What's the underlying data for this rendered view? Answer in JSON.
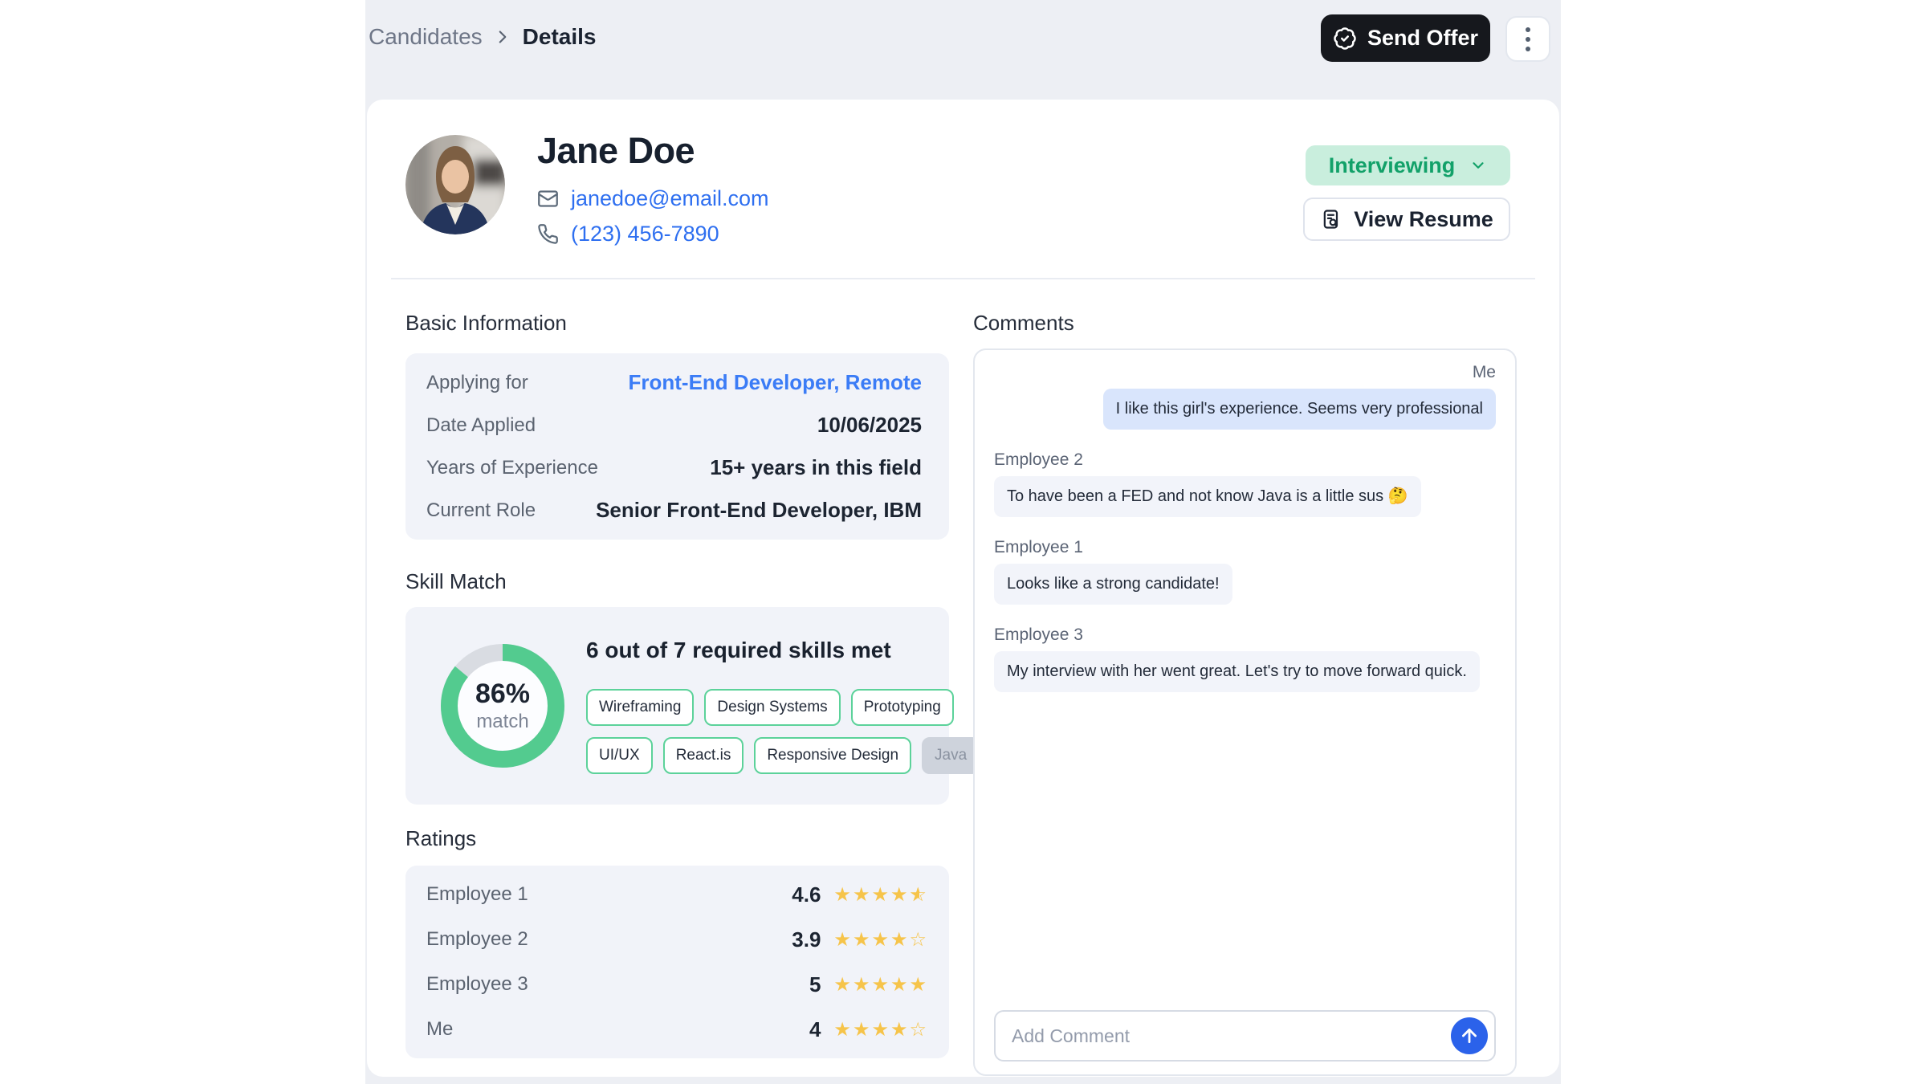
{
  "breadcrumb": {
    "parent": "Candidates",
    "current": "Details"
  },
  "header": {
    "send_offer_label": "Send Offer"
  },
  "profile": {
    "name": "Jane Doe",
    "email": "janedoe@email.com",
    "phone": "(123) 456-7890",
    "status_label": "Interviewing",
    "view_resume_label": "View Resume"
  },
  "basic_info": {
    "title": "Basic Information",
    "rows": [
      {
        "label": "Applying for",
        "value": "Front-End Developer, Remote",
        "link": true
      },
      {
        "label": "Date Applied",
        "value": "10/06/2025",
        "link": false
      },
      {
        "label": "Years of Experience",
        "value": "15+ years in this field",
        "link": false
      },
      {
        "label": "Current Role",
        "value": "Senior Front-End Developer, IBM",
        "link": false
      }
    ]
  },
  "skill_match": {
    "title": "Skill Match",
    "percent": 86,
    "percent_label": "86%",
    "match_label": "match",
    "summary": "6 out of 7 required skills met",
    "skills_met": 6,
    "skills_required": 7,
    "skills": [
      {
        "label": "Wireframing",
        "met": true
      },
      {
        "label": "Design Systems",
        "met": true
      },
      {
        "label": "Prototyping",
        "met": true
      },
      {
        "label": "UI/UX",
        "met": true
      },
      {
        "label": "React.is",
        "met": true
      },
      {
        "label": "Responsive Design",
        "met": true
      },
      {
        "label": "Java",
        "met": false
      }
    ]
  },
  "ratings": {
    "title": "Ratings",
    "rows": [
      {
        "label": "Employee 1",
        "value": "4.6",
        "stars": {
          "full": 4,
          "half": 1,
          "empty": 0
        }
      },
      {
        "label": "Employee 2",
        "value": "3.9",
        "stars": {
          "full": 4,
          "half": 0,
          "empty": 1
        }
      },
      {
        "label": "Employee 3",
        "value": "5",
        "stars": {
          "full": 5,
          "half": 0,
          "empty": 0
        }
      },
      {
        "label": "Me",
        "value": "4",
        "stars": {
          "full": 4,
          "half": 0,
          "empty": 1
        }
      }
    ]
  },
  "comments": {
    "title": "Comments",
    "messages": [
      {
        "author": "Me",
        "side": "right",
        "text": "I like this girl's experience. Seems very professional"
      },
      {
        "author": "Employee 2",
        "side": "left",
        "text": "To have been a FED and not know Java is a little sus 🤔"
      },
      {
        "author": "Employee 1",
        "side": "left",
        "text": "Looks like a strong candidate!"
      },
      {
        "author": "Employee 3",
        "side": "left",
        "text": "My interview with her went great. Let's try to move forward quick."
      }
    ],
    "input_placeholder": "Add Comment"
  },
  "colors": {
    "column-bg": "#edeff4",
    "tile-bg": "#f1f3f9",
    "green": "#53cb8f",
    "track": "#d9dce2",
    "status-bg": "#c9eedd",
    "status-text": "#12a169",
    "link": "#2e6ff0",
    "star": "#f6c44a",
    "send-button-bg": "#16181d",
    "send-circle": "#2b62ea",
    "me-bubble": "#d9e5fc",
    "bubble": "#f2f4fa"
  }
}
